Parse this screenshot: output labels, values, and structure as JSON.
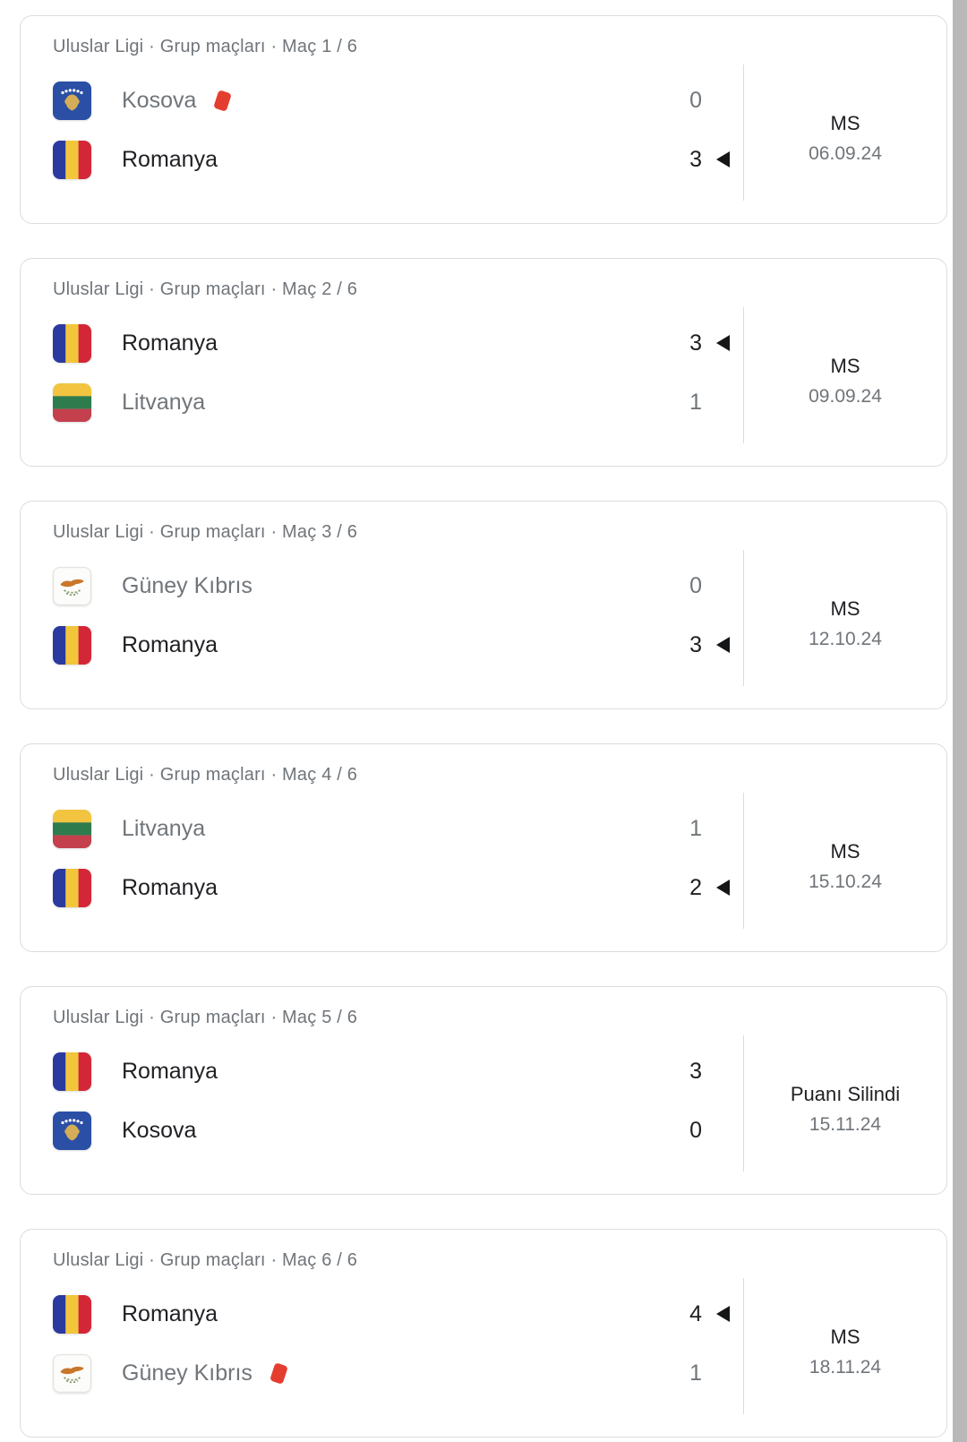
{
  "page": {
    "background": "#ffffff",
    "scrollbar_color": "#b8b8b8"
  },
  "colors": {
    "card_border": "#dadce0",
    "text_primary": "#202124",
    "text_secondary": "#70757a",
    "red_card": "#e43e31",
    "winner_arrow": "#151617"
  },
  "icons": {
    "winner_arrow": "left-pointing-triangle",
    "red_card": "tilted-red-rectangle",
    "flags": [
      "kosovo",
      "romania",
      "lithuania",
      "cyprus"
    ]
  },
  "matches": [
    {
      "header": "Uluslar Ligi · Grup maçları · Maç 1 / 6",
      "status": "MS",
      "date": "06.09.24",
      "teams": [
        {
          "name": "Kosova",
          "flag": "kosovo",
          "score": "0",
          "bold": false,
          "arrow": false,
          "red_card": true
        },
        {
          "name": "Romanya",
          "flag": "romania",
          "score": "3",
          "bold": true,
          "arrow": true,
          "red_card": false
        }
      ]
    },
    {
      "header": "Uluslar Ligi · Grup maçları · Maç 2 / 6",
      "status": "MS",
      "date": "09.09.24",
      "teams": [
        {
          "name": "Romanya",
          "flag": "romania",
          "score": "3",
          "bold": true,
          "arrow": true,
          "red_card": false
        },
        {
          "name": "Litvanya",
          "flag": "lithuania",
          "score": "1",
          "bold": false,
          "arrow": false,
          "red_card": false
        }
      ]
    },
    {
      "header": "Uluslar Ligi · Grup maçları · Maç 3 / 6",
      "status": "MS",
      "date": "12.10.24",
      "teams": [
        {
          "name": "Güney Kıbrıs",
          "flag": "cyprus",
          "score": "0",
          "bold": false,
          "arrow": false,
          "red_card": false
        },
        {
          "name": "Romanya",
          "flag": "romania",
          "score": "3",
          "bold": true,
          "arrow": true,
          "red_card": false
        }
      ]
    },
    {
      "header": "Uluslar Ligi · Grup maçları · Maç 4 / 6",
      "status": "MS",
      "date": "15.10.24",
      "teams": [
        {
          "name": "Litvanya",
          "flag": "lithuania",
          "score": "1",
          "bold": false,
          "arrow": false,
          "red_card": false
        },
        {
          "name": "Romanya",
          "flag": "romania",
          "score": "2",
          "bold": true,
          "arrow": true,
          "red_card": false
        }
      ]
    },
    {
      "header": "Uluslar Ligi · Grup maçları · Maç 5 / 6",
      "status": "Puanı Silindi",
      "date": "15.11.24",
      "teams": [
        {
          "name": "Romanya",
          "flag": "romania",
          "score": "3",
          "bold": true,
          "arrow": false,
          "red_card": false
        },
        {
          "name": "Kosova",
          "flag": "kosovo",
          "score": "0",
          "bold": true,
          "arrow": false,
          "red_card": false
        }
      ]
    },
    {
      "header": "Uluslar Ligi · Grup maçları · Maç 6 / 6",
      "status": "MS",
      "date": "18.11.24",
      "teams": [
        {
          "name": "Romanya",
          "flag": "romania",
          "score": "4",
          "bold": true,
          "arrow": true,
          "red_card": false
        },
        {
          "name": "Güney Kıbrıs",
          "flag": "cyprus",
          "score": "1",
          "bold": false,
          "arrow": false,
          "red_card": true
        }
      ]
    }
  ]
}
